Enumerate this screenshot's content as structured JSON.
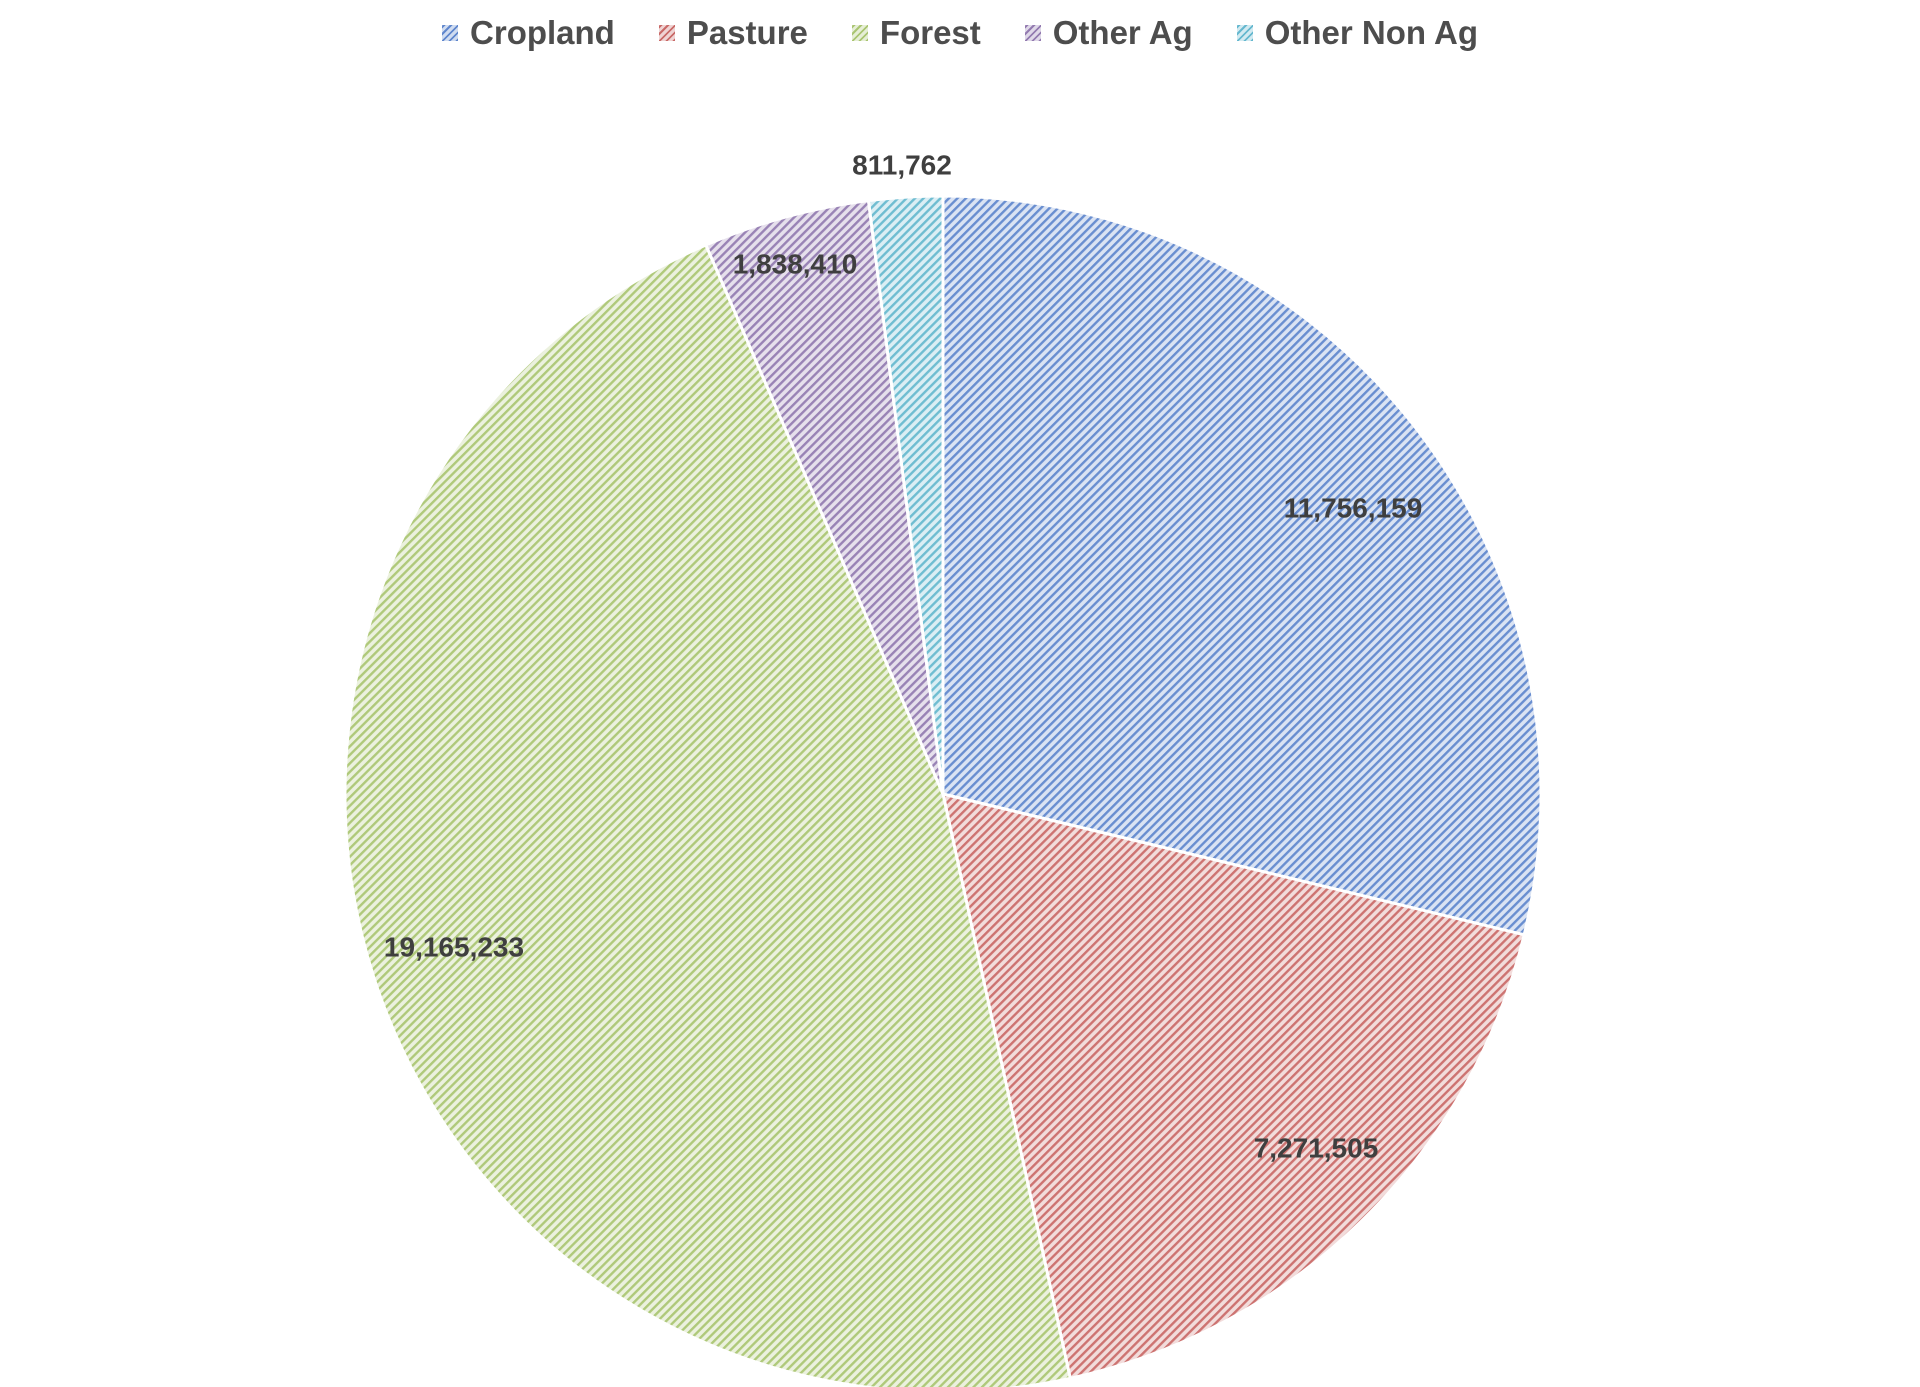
{
  "chart_data": {
    "type": "pie",
    "title": "",
    "legend_position": "top",
    "categories": [
      "Cropland",
      "Pasture",
      "Forest",
      "Other Ag",
      "Other Non Ag"
    ],
    "values": [
      11756159,
      7271505,
      19165233,
      1838410,
      811762
    ],
    "data_labels": [
      "11,756,159",
      "7,271,505",
      "19,165,233",
      "1,838,410",
      "811,762"
    ],
    "colors": [
      "#4472c4",
      "#c0504d",
      "#9bbb59",
      "#8064a2",
      "#4bacc6"
    ],
    "fill_style": "diagonal-hatch"
  }
}
